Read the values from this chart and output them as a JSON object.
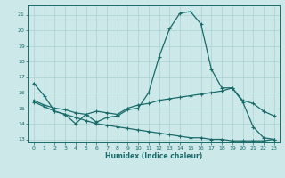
{
  "xlabel": "Humidex (Indice chaleur)",
  "background_color": "#cce8e8",
  "grid_color": "#aad0d0",
  "line_color": "#1a6b6b",
  "xlim": [
    -0.5,
    23.5
  ],
  "ylim": [
    12.8,
    21.6
  ],
  "yticks": [
    13,
    14,
    15,
    16,
    17,
    18,
    19,
    20,
    21
  ],
  "xticks": [
    0,
    1,
    2,
    3,
    4,
    5,
    6,
    7,
    8,
    9,
    10,
    11,
    12,
    13,
    14,
    15,
    16,
    17,
    18,
    19,
    20,
    21,
    22,
    23
  ],
  "line1_x": [
    0,
    1,
    2,
    3,
    4,
    5,
    6,
    7,
    8,
    9,
    10,
    11,
    12,
    13,
    14,
    15,
    16,
    17,
    18,
    19,
    20,
    21,
    22,
    23
  ],
  "line1_y": [
    16.6,
    15.8,
    14.8,
    14.6,
    14.0,
    14.6,
    14.1,
    14.4,
    14.5,
    14.9,
    15.0,
    16.0,
    18.3,
    20.1,
    21.1,
    21.2,
    20.4,
    17.5,
    16.3,
    16.3,
    15.4,
    13.8,
    13.1,
    13.0
  ],
  "line2_x": [
    0,
    1,
    2,
    3,
    4,
    5,
    6,
    7,
    8,
    9,
    10,
    11,
    12,
    13,
    14,
    15,
    16,
    17,
    18,
    19,
    20,
    21,
    22,
    23
  ],
  "line2_y": [
    15.5,
    15.2,
    15.0,
    14.9,
    14.7,
    14.6,
    14.8,
    14.7,
    14.6,
    15.0,
    15.2,
    15.3,
    15.5,
    15.6,
    15.7,
    15.8,
    15.9,
    16.0,
    16.1,
    16.3,
    15.5,
    15.3,
    14.8,
    14.5
  ],
  "line3_x": [
    0,
    1,
    2,
    3,
    4,
    5,
    6,
    7,
    8,
    9,
    10,
    11,
    12,
    13,
    14,
    15,
    16,
    17,
    18,
    19,
    20,
    21,
    22,
    23
  ],
  "line3_y": [
    15.4,
    15.1,
    14.8,
    14.6,
    14.4,
    14.2,
    14.0,
    13.9,
    13.8,
    13.7,
    13.6,
    13.5,
    13.4,
    13.3,
    13.2,
    13.1,
    13.1,
    13.0,
    13.0,
    12.9,
    12.9,
    12.9,
    12.9,
    13.0
  ]
}
